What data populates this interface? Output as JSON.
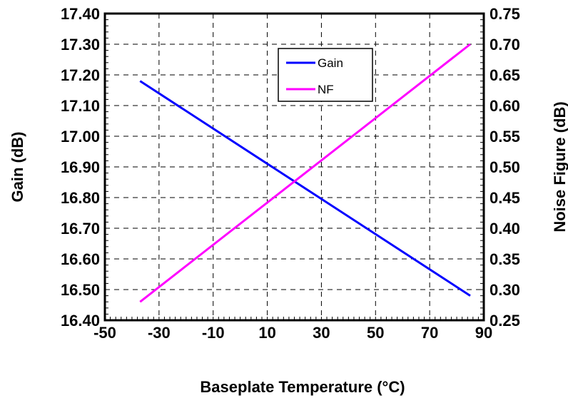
{
  "chart_data": {
    "type": "line",
    "xlabel": "Baseplate Temperature (°C)",
    "ylabel_left": "Gain (dB)",
    "ylabel_right": "Noise Figure (dB)",
    "xlim": [
      -50,
      90
    ],
    "ylim_left": [
      16.4,
      17.4
    ],
    "ylim_right": [
      0.25,
      0.75
    ],
    "x_ticks": [
      "-50",
      "-30",
      "-10",
      "10",
      "30",
      "50",
      "70",
      "90"
    ],
    "x_tick_values": [
      -50,
      -30,
      -10,
      10,
      30,
      50,
      70,
      90
    ],
    "y_left_ticks": [
      "16.40",
      "16.50",
      "16.60",
      "16.70",
      "16.80",
      "16.90",
      "17.00",
      "17.10",
      "17.20",
      "17.30",
      "17.40"
    ],
    "y_left_tick_values": [
      16.4,
      16.5,
      16.6,
      16.7,
      16.8,
      16.9,
      17.0,
      17.1,
      17.2,
      17.3,
      17.4
    ],
    "y_right_ticks": [
      "0.25",
      "0.30",
      "0.35",
      "0.40",
      "0.45",
      "0.50",
      "0.55",
      "0.60",
      "0.65",
      "0.70",
      "0.75"
    ],
    "y_right_tick_values": [
      0.25,
      0.3,
      0.35,
      0.4,
      0.45,
      0.5,
      0.55,
      0.6,
      0.65,
      0.7,
      0.75
    ],
    "grid": true,
    "legend_position": "top-center",
    "series": [
      {
        "name": "Gain",
        "axis": "left",
        "color": "#0000ff",
        "x": [
          -37,
          85
        ],
        "y": [
          17.18,
          16.48
        ]
      },
      {
        "name": "NF",
        "axis": "right",
        "color": "#ff00ff",
        "x": [
          -37,
          85
        ],
        "y": [
          0.28,
          0.7
        ]
      }
    ]
  }
}
